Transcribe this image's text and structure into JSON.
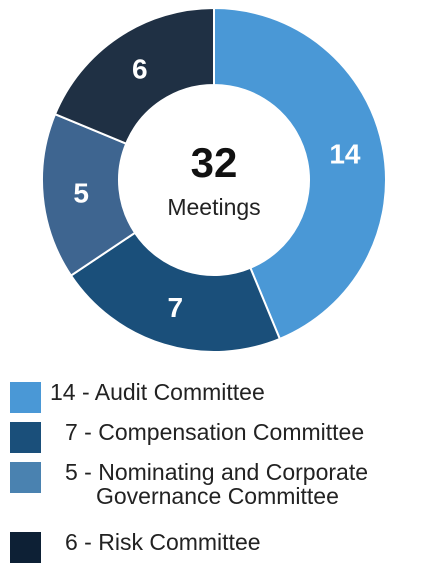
{
  "chart_data": {
    "type": "donut",
    "center_value": 32,
    "center_label": "Meetings",
    "categories": [
      "14 - Audit Committee",
      "7 - Compensation Committee",
      "5 - Nominating and Corporate Governance Committee",
      "6 - Risk Committee"
    ],
    "values": [
      14,
      7,
      5,
      6
    ],
    "colors": [
      "#4a98d6",
      "#1a4f7a",
      "#3e6590",
      "#1f3044"
    ],
    "legend_colors": [
      "#4a98d6",
      "#1a4f7a",
      "#4a82b0",
      "#0d2035"
    ]
  }
}
